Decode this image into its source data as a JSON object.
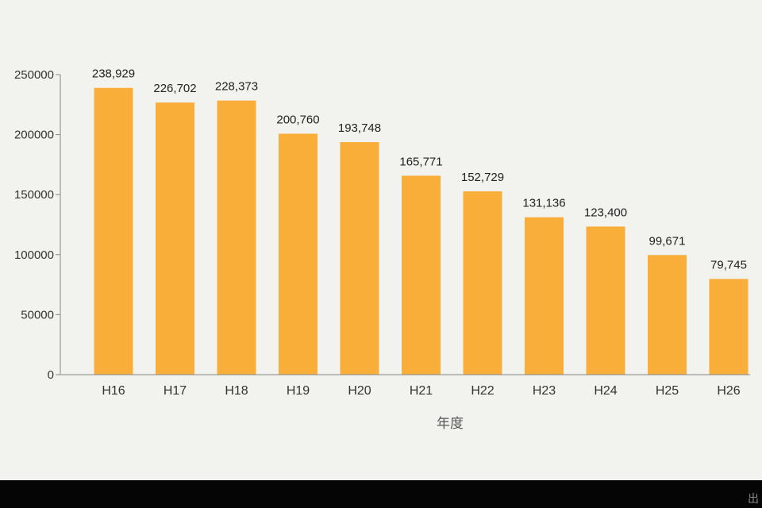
{
  "chart_data": {
    "type": "bar",
    "title": "",
    "xlabel": "年度",
    "ylabel": "",
    "ylim": [
      0,
      250000
    ],
    "yticks": [
      0,
      50000,
      100000,
      150000,
      200000,
      250000
    ],
    "categories": [
      "H16",
      "H17",
      "H18",
      "H19",
      "H20",
      "H21",
      "H22",
      "H23",
      "H24",
      "H25",
      "H26"
    ],
    "values": [
      238929,
      226702,
      228373,
      200760,
      193748,
      165771,
      152729,
      131136,
      123400,
      99671,
      79745
    ],
    "data_labels": [
      "238,929",
      "226,702",
      "228,373",
      "200,760",
      "193,748",
      "165,771",
      "152,729",
      "131,136",
      "123,400",
      "99,671",
      "79,745"
    ],
    "bar_color": "#f9ae3a",
    "legend": "none",
    "grid": false
  },
  "footer": {
    "text": "出"
  }
}
